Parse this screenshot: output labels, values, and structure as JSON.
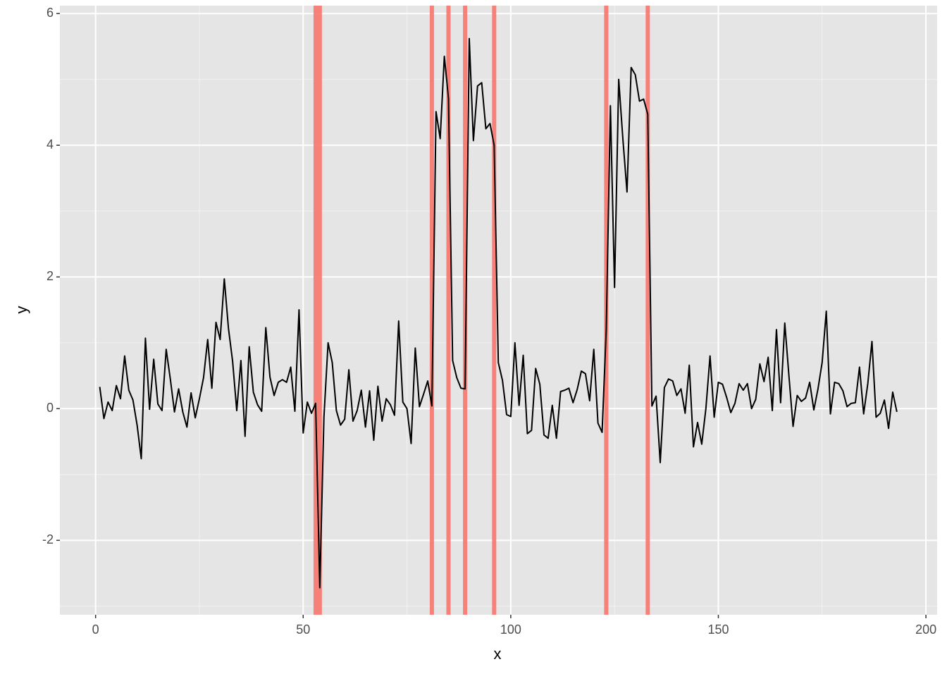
{
  "chart_data": {
    "type": "line",
    "x": [
      1,
      2,
      3,
      4,
      5,
      6,
      7,
      8,
      9,
      10,
      11,
      12,
      13,
      14,
      15,
      16,
      17,
      18,
      19,
      20,
      21,
      22,
      23,
      24,
      25,
      26,
      27,
      28,
      29,
      30,
      31,
      32,
      33,
      34,
      35,
      36,
      37,
      38,
      39,
      40,
      41,
      42,
      43,
      44,
      45,
      46,
      47,
      48,
      49,
      50,
      51,
      52,
      53,
      54,
      55,
      56,
      57,
      58,
      59,
      60,
      61,
      62,
      63,
      64,
      65,
      66,
      67,
      68,
      69,
      70,
      71,
      72,
      73,
      74,
      75,
      76,
      77,
      78,
      79,
      80,
      81,
      82,
      83,
      84,
      85,
      86,
      87,
      88,
      89,
      90,
      91,
      92,
      93,
      94,
      95,
      96,
      97,
      98,
      99,
      100,
      101,
      102,
      103,
      104,
      105,
      106,
      107,
      108,
      109,
      110,
      111,
      112,
      113,
      114,
      115,
      116,
      117,
      118,
      119,
      120,
      121,
      122,
      123,
      124,
      125,
      126,
      127,
      128,
      129,
      130,
      131,
      132,
      133,
      134,
      135,
      136,
      137,
      138,
      139,
      140,
      141,
      142,
      143,
      144,
      145,
      146,
      147,
      148,
      149,
      150,
      151,
      152,
      153,
      154,
      155,
      156,
      157,
      158,
      159,
      160,
      161,
      162,
      163,
      164,
      165,
      166,
      167,
      168,
      169,
      170,
      171,
      172,
      173,
      174,
      175,
      176,
      177,
      178,
      179,
      180,
      181,
      182,
      183,
      184,
      185,
      186,
      187,
      188,
      189,
      190,
      191,
      192,
      193
    ],
    "values": [
      0.33,
      -0.15,
      0.1,
      -0.03,
      0.35,
      0.15,
      0.8,
      0.28,
      0.13,
      -0.25,
      -0.76,
      1.07,
      -0.01,
      0.75,
      0.07,
      -0.03,
      0.9,
      0.45,
      -0.05,
      0.3,
      -0.05,
      -0.28,
      0.24,
      -0.14,
      0.15,
      0.47,
      1.05,
      0.31,
      1.31,
      1.05,
      1.97,
      1.22,
      0.72,
      -0.03,
      0.73,
      -0.42,
      0.94,
      0.25,
      0.06,
      -0.04,
      1.23,
      0.48,
      0.2,
      0.4,
      0.44,
      0.4,
      0.63,
      -0.04,
      1.5,
      -0.37,
      0.1,
      -0.07,
      0.08,
      -2.72,
      -0.13,
      1.0,
      0.7,
      -0.03,
      -0.25,
      -0.16,
      0.59,
      -0.19,
      -0.03,
      0.28,
      -0.28,
      0.27,
      -0.48,
      0.34,
      -0.19,
      0.15,
      0.06,
      -0.1,
      1.33,
      0.1,
      0.0,
      -0.53,
      0.92,
      0.03,
      0.22,
      0.42,
      0.04,
      4.51,
      4.1,
      5.35,
      4.71,
      0.73,
      0.47,
      0.31,
      0.3,
      5.62,
      4.07,
      4.9,
      4.95,
      4.25,
      4.33,
      4.0,
      0.7,
      0.43,
      -0.09,
      -0.12,
      1.0,
      0.05,
      0.81,
      -0.38,
      -0.33,
      0.61,
      0.37,
      -0.4,
      -0.45,
      0.05,
      -0.45,
      0.26,
      0.28,
      0.31,
      0.09,
      0.29,
      0.57,
      0.53,
      0.12,
      0.9,
      -0.22,
      -0.36,
      1.2,
      4.6,
      1.84,
      5.0,
      4.1,
      3.29,
      5.18,
      5.07,
      4.67,
      4.7,
      4.47,
      0.04,
      0.19,
      -0.82,
      0.32,
      0.45,
      0.42,
      0.2,
      0.3,
      -0.07,
      0.66,
      -0.58,
      -0.21,
      -0.54,
      0.0,
      0.8,
      -0.13,
      0.4,
      0.37,
      0.17,
      -0.06,
      0.08,
      0.38,
      0.28,
      0.38,
      0.0,
      0.14,
      0.68,
      0.41,
      0.78,
      -0.03,
      1.2,
      0.09,
      1.3,
      0.5,
      -0.27,
      0.2,
      0.11,
      0.16,
      0.4,
      -0.02,
      0.3,
      0.7,
      1.48,
      -0.08,
      0.4,
      0.38,
      0.27,
      0.03,
      0.08,
      0.09,
      0.63,
      -0.08,
      0.38,
      1.02,
      -0.13,
      -0.07,
      0.13,
      -0.3,
      0.25,
      -0.05
    ],
    "color": "#000000",
    "vlines": [
      53,
      54,
      81,
      85,
      89,
      96,
      123,
      133
    ],
    "vline_color": "#f8766d",
    "x_label": "x",
    "y_label": "y",
    "xlim": [
      -8.6,
      202.7
    ],
    "ylim": [
      -3.13,
      6.12
    ],
    "xticks": [
      0,
      50,
      100,
      150,
      200
    ],
    "yticks": [
      -2,
      0,
      2,
      4,
      6
    ],
    "grid": true
  }
}
